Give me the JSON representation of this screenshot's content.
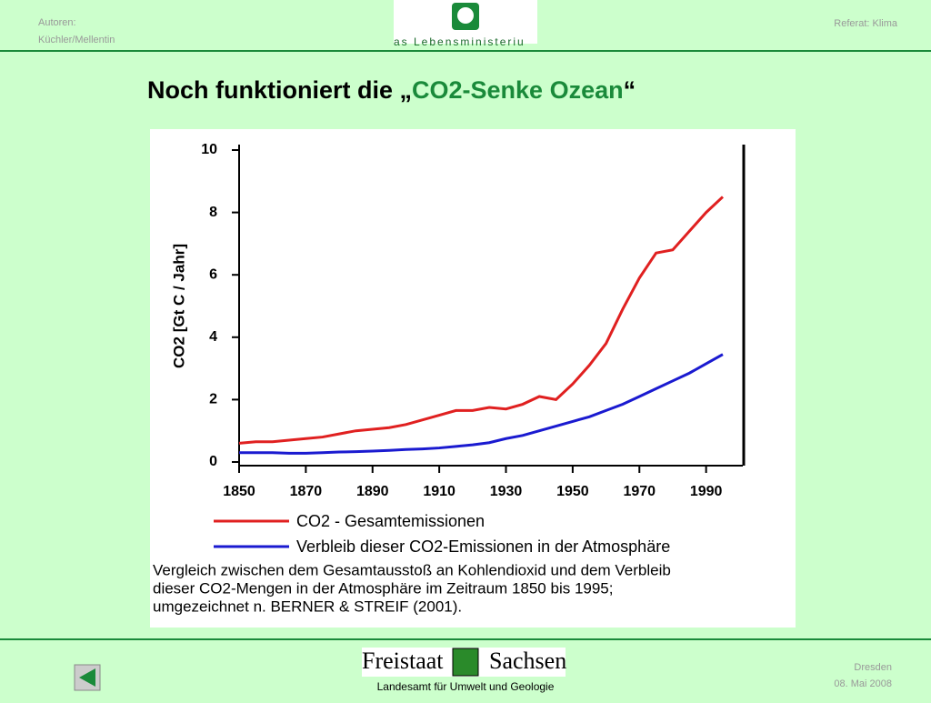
{
  "header": {
    "authors_label": "Autoren:",
    "authors": "Küchler/Mellentin",
    "logo_text": "as Lebensministeriu",
    "topic": "Referat: Klima"
  },
  "title_prefix": "Noch funktioniert die „",
  "title_highlight": "CO2-Senke Ozean",
  "title_suffix": "“",
  "chart_data": {
    "type": "line",
    "ylabel": "CO2 [Gt C / Jahr]",
    "x": [
      1850,
      1855,
      1860,
      1865,
      1870,
      1875,
      1880,
      1885,
      1890,
      1895,
      1900,
      1905,
      1910,
      1915,
      1920,
      1925,
      1930,
      1935,
      1940,
      1945,
      1950,
      1955,
      1960,
      1965,
      1970,
      1975,
      1980,
      1985,
      1990,
      1995
    ],
    "series": [
      {
        "name": "CO2 - Gesamtemissionen",
        "color": "#e02020",
        "values": [
          0.6,
          0.65,
          0.65,
          0.7,
          0.75,
          0.8,
          0.9,
          1.0,
          1.05,
          1.1,
          1.2,
          1.35,
          1.5,
          1.65,
          1.65,
          1.75,
          1.7,
          1.85,
          2.1,
          2.0,
          2.5,
          3.1,
          3.8,
          4.9,
          5.9,
          6.7,
          6.8,
          7.4,
          8.0,
          8.5
        ]
      },
      {
        "name": "Verbleib dieser CO2-Emissionen in der Atmosphäre",
        "color": "#1a1ad0",
        "values": [
          0.3,
          0.3,
          0.3,
          0.28,
          0.28,
          0.3,
          0.32,
          0.33,
          0.35,
          0.37,
          0.4,
          0.42,
          0.45,
          0.5,
          0.55,
          0.62,
          0.75,
          0.85,
          1.0,
          1.15,
          1.3,
          1.45,
          1.65,
          1.85,
          2.1,
          2.35,
          2.6,
          2.85,
          3.15,
          3.45
        ]
      }
    ],
    "xlim": [
      1850,
      2001
    ],
    "ylim": [
      0,
      10
    ],
    "xticks": [
      1850,
      1870,
      1890,
      1910,
      1930,
      1950,
      1970,
      1990
    ],
    "yticks": [
      0,
      2,
      4,
      6,
      8,
      10
    ],
    "caption": [
      "Vergleich zwischen dem Gesamtausstoß an Kohlendioxid und dem Verbleib",
      "dieser CO2-Mengen in der Atmosphäre im Zeitraum 1850 bis 1995;",
      "umgezeichnet n. BERNER & STREIF (2001)."
    ]
  },
  "footer": {
    "state_left": "Freistaat",
    "state_right": "Sachsen",
    "agency": "Landesamt für Umwelt und Geologie",
    "city": "Dresden",
    "date": "08. Mai 2008"
  }
}
